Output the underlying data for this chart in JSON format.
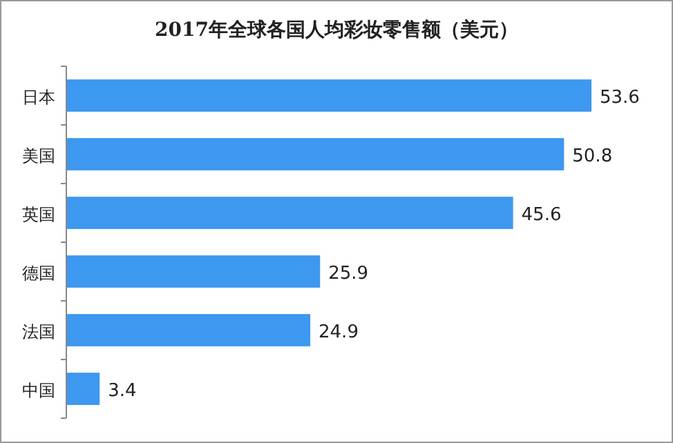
{
  "chart_data": {
    "type": "bar",
    "orientation": "horizontal",
    "title": "2017年全球各国人均彩妆零售额（美元）",
    "categories": [
      "日本",
      "美国",
      "英国",
      "德国",
      "法国",
      "中国"
    ],
    "values": [
      53.6,
      50.8,
      45.6,
      25.9,
      24.9,
      3.4
    ],
    "color": "#3d98f0",
    "data_labels": true
  }
}
